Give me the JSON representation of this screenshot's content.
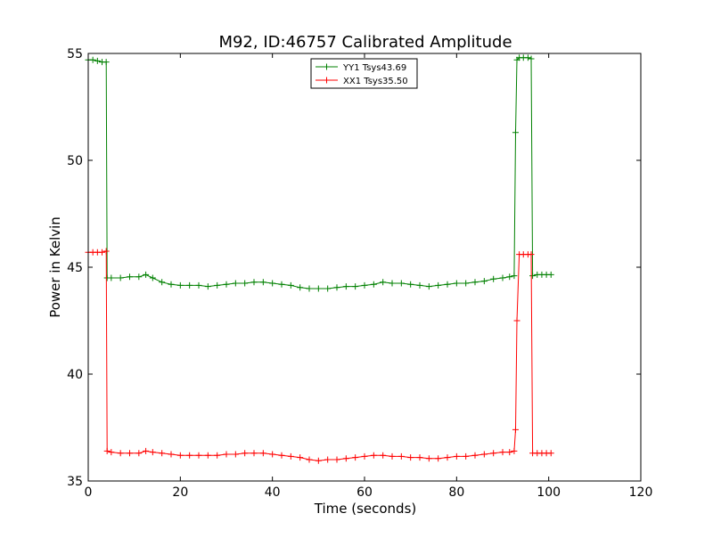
{
  "chart_data": {
    "type": "line",
    "title": "M92, ID:46757 Calibrated Amplitude",
    "xlabel": "Time (seconds)",
    "ylabel": "Power in Kelvin",
    "xlim": [
      0,
      120
    ],
    "ylim": [
      35,
      55
    ],
    "xticks": [
      "0",
      "20",
      "40",
      "60",
      "80",
      "100",
      "120"
    ],
    "yticks": [
      "35",
      "40",
      "45",
      "50",
      "55"
    ],
    "grid": false,
    "legend_position": "top-center",
    "marker": "+",
    "series": [
      {
        "name": "YY1 Tsys43.69",
        "color": "#008000",
        "x": [
          0,
          1,
          2,
          3,
          3.9,
          4.1,
          5,
          7,
          9,
          11,
          12.5,
          14,
          16,
          18,
          20,
          22,
          24,
          26,
          28,
          30,
          32,
          34,
          36,
          38,
          40,
          42,
          44,
          46,
          48,
          50,
          52,
          54,
          56,
          58,
          60,
          62,
          64,
          66,
          68,
          70,
          72,
          74,
          76,
          78,
          80,
          82,
          84,
          86,
          88,
          90,
          91.5,
          92.5,
          92.8,
          93.1,
          93.6,
          94.5,
          95.5,
          96.2,
          96.5,
          97.5,
          98.5,
          99.5,
          100.5
        ],
        "y": [
          54.7,
          54.7,
          54.65,
          54.6,
          54.6,
          44.5,
          44.5,
          44.5,
          44.55,
          44.55,
          44.65,
          44.5,
          44.3,
          44.2,
          44.15,
          44.15,
          44.15,
          44.1,
          44.15,
          44.2,
          44.25,
          44.25,
          44.3,
          44.3,
          44.25,
          44.2,
          44.15,
          44.05,
          44.0,
          44.0,
          44.0,
          44.05,
          44.1,
          44.1,
          44.15,
          44.2,
          44.3,
          44.25,
          44.25,
          44.2,
          44.15,
          44.1,
          44.15,
          44.2,
          44.25,
          44.25,
          44.3,
          44.35,
          44.45,
          44.5,
          44.55,
          44.6,
          51.3,
          54.7,
          54.8,
          54.8,
          54.8,
          54.75,
          44.6,
          44.65,
          44.65,
          44.65,
          44.65
        ]
      },
      {
        "name": "XX1 Tsys35.50",
        "color": "#ff0000",
        "x": [
          0,
          1,
          2,
          3,
          3.9,
          4.1,
          5,
          7,
          9,
          11,
          12.5,
          14,
          16,
          18,
          20,
          22,
          24,
          26,
          28,
          30,
          32,
          34,
          36,
          38,
          40,
          42,
          44,
          46,
          48,
          50,
          52,
          54,
          56,
          58,
          60,
          62,
          64,
          66,
          68,
          70,
          72,
          74,
          76,
          78,
          80,
          82,
          84,
          86,
          88,
          90,
          91.5,
          92.5,
          92.8,
          93.1,
          93.6,
          94.5,
          95.5,
          96.2,
          96.5,
          97.5,
          98.5,
          99.5,
          100.5
        ],
        "y": [
          45.7,
          45.7,
          45.7,
          45.7,
          45.75,
          36.4,
          36.35,
          36.3,
          36.3,
          36.3,
          36.4,
          36.35,
          36.3,
          36.25,
          36.2,
          36.2,
          36.2,
          36.2,
          36.2,
          36.25,
          36.25,
          36.3,
          36.3,
          36.3,
          36.25,
          36.2,
          36.15,
          36.1,
          36.0,
          35.95,
          36.0,
          36.0,
          36.05,
          36.1,
          36.15,
          36.2,
          36.2,
          36.15,
          36.15,
          36.1,
          36.1,
          36.05,
          36.05,
          36.1,
          36.15,
          36.15,
          36.2,
          36.25,
          36.3,
          36.35,
          36.35,
          36.4,
          37.4,
          42.5,
          45.6,
          45.6,
          45.6,
          45.6,
          36.3,
          36.3,
          36.3,
          36.3,
          36.3
        ]
      }
    ]
  }
}
